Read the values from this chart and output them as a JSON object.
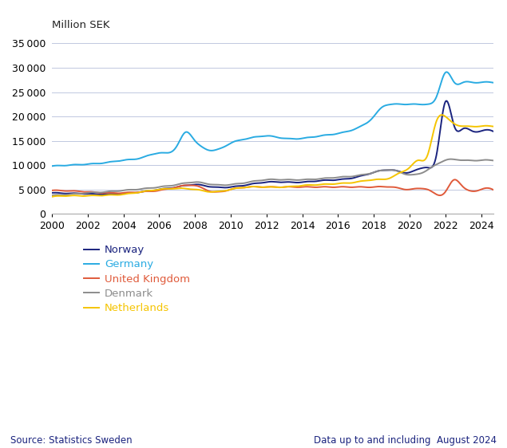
{
  "ylabel": "Million SEK",
  "xlim": [
    2000,
    2024.67
  ],
  "ylim": [
    0,
    37000
  ],
  "yticks": [
    0,
    5000,
    10000,
    15000,
    20000,
    25000,
    30000,
    35000
  ],
  "xticks": [
    2000,
    2002,
    2004,
    2006,
    2008,
    2010,
    2012,
    2014,
    2016,
    2018,
    2020,
    2022,
    2024
  ],
  "background_color": "#ffffff",
  "grid_color": "#c0c8e0",
  "legend_labels": [
    "Norway",
    "Germany",
    "United Kingdom",
    "Denmark",
    "Netherlands"
  ],
  "series_colors": [
    "#1a237e",
    "#29abe2",
    "#e05a3a",
    "#8c8c8c",
    "#f5c400"
  ],
  "line_width": 1.4,
  "source_text": "Source: Statistics Sweden",
  "data_note": "Data up to and including  August 2024",
  "norway_years": [
    2000,
    2001,
    2002,
    2003,
    2004,
    2005,
    2006,
    2007,
    2008,
    2009,
    2010,
    2011,
    2012,
    2013,
    2014,
    2015,
    2016,
    2017,
    2018,
    2019,
    2020,
    2021,
    2021.5,
    2022.0,
    2022.5,
    2023.0,
    2023.5,
    2024.0,
    2024.67
  ],
  "norway_vals": [
    4300,
    4200,
    4100,
    4000,
    4200,
    4500,
    5000,
    5500,
    6000,
    5500,
    5500,
    6000,
    6500,
    6500,
    6500,
    6800,
    7000,
    7500,
    8500,
    9000,
    8500,
    9500,
    12000,
    23000,
    18000,
    17500,
    17000,
    17000,
    17000
  ],
  "germany_years": [
    2000,
    2001,
    2002,
    2003,
    2004,
    2005,
    2006,
    2007,
    2007.5,
    2008,
    2008.5,
    2009,
    2010,
    2011,
    2012,
    2013,
    2014,
    2015,
    2016,
    2017,
    2018,
    2018.5,
    2019,
    2020,
    2021,
    2021.5,
    2022.0,
    2022.5,
    2023.0,
    2023.5,
    2024.0,
    2024.67
  ],
  "germany_vals": [
    9800,
    10000,
    10200,
    10500,
    11000,
    11500,
    12500,
    14000,
    16800,
    15000,
    13500,
    13000,
    14500,
    15500,
    16000,
    15500,
    15500,
    16000,
    16500,
    17500,
    20000,
    22000,
    22500,
    22500,
    22500,
    24000,
    29000,
    27000,
    27000,
    27000,
    27000,
    27000
  ],
  "uk_years": [
    2000,
    2001,
    2002,
    2003,
    2004,
    2005,
    2006,
    2007,
    2008,
    2009,
    2010,
    2011,
    2012,
    2013,
    2014,
    2015,
    2016,
    2017,
    2018,
    2019,
    2020,
    2021,
    2022,
    2022.5,
    2023,
    2024,
    2024.67
  ],
  "uk_vals": [
    4800,
    4700,
    4500,
    4300,
    4300,
    4500,
    4800,
    5500,
    5800,
    4500,
    5000,
    5500,
    5500,
    5500,
    5500,
    5500,
    5500,
    5500,
    5500,
    5500,
    5000,
    5000,
    4500,
    7000,
    5500,
    5000,
    5000
  ],
  "denmark_years": [
    2000,
    2001,
    2002,
    2003,
    2004,
    2005,
    2006,
    2007,
    2008,
    2009,
    2010,
    2011,
    2012,
    2013,
    2014,
    2015,
    2016,
    2017,
    2018,
    2019,
    2020,
    2021,
    2022,
    2023,
    2024,
    2024.67
  ],
  "denmark_vals": [
    3800,
    4000,
    4300,
    4500,
    4800,
    5100,
    5500,
    6000,
    6500,
    6000,
    6000,
    6500,
    7000,
    7000,
    7000,
    7200,
    7500,
    7800,
    8500,
    9000,
    8000,
    9000,
    11000,
    11000,
    11000,
    11000
  ],
  "netherlands_years": [
    2000,
    2001,
    2002,
    2003,
    2004,
    2005,
    2006,
    2007,
    2008,
    2009,
    2010,
    2011,
    2012,
    2013,
    2014,
    2015,
    2016,
    2017,
    2018,
    2019,
    2019.5,
    2020,
    2020.5,
    2021,
    2021.5,
    2022.0,
    2022.3,
    2022.5,
    2023,
    2024,
    2024.67
  ],
  "netherlands_vals": [
    3500,
    3700,
    3700,
    3800,
    4000,
    4500,
    5000,
    5200,
    5000,
    4500,
    5000,
    5500,
    5500,
    5500,
    5800,
    6000,
    6200,
    6500,
    7000,
    7500,
    8500,
    9500,
    11000,
    12000,
    19000,
    20000,
    19000,
    18500,
    18000,
    18000,
    18000
  ]
}
